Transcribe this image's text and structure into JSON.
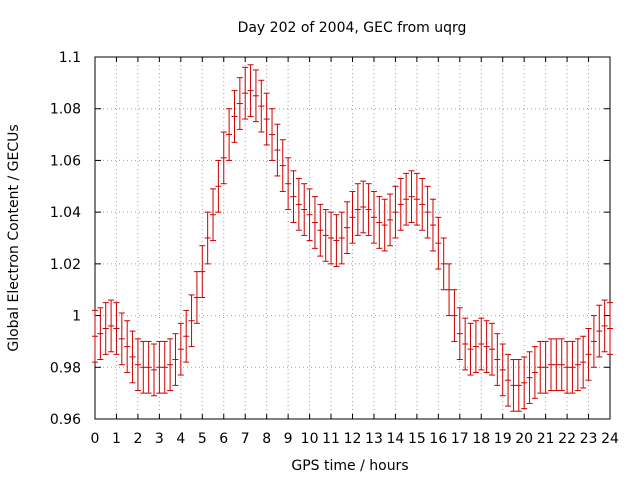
{
  "chart_data": {
    "type": "line",
    "title": "Day 202 of 2004, GEC from uqrg",
    "xlabel": "GPS time / hours",
    "ylabel": "Global Electron Content / GECUs",
    "xlim": [
      0,
      24
    ],
    "ylim": [
      0.96,
      1.1
    ],
    "xticks": [
      0,
      1,
      2,
      3,
      4,
      5,
      6,
      7,
      8,
      9,
      10,
      11,
      12,
      13,
      14,
      15,
      16,
      17,
      18,
      19,
      20,
      21,
      22,
      23,
      24
    ],
    "yticks": [
      0.96,
      0.98,
      1,
      1.02,
      1.04,
      1.06,
      1.08,
      1.1
    ],
    "ytick_labels": [
      "0.96",
      "0.98",
      "1",
      "1.02",
      "1.04",
      "1.06",
      "1.08",
      "1.1"
    ],
    "grid": true,
    "error_bar_half_width": 0.01,
    "series": [
      {
        "name": "GEC",
        "color": "#cc0000",
        "x": [
          0,
          0.25,
          0.5,
          0.75,
          1,
          1.25,
          1.5,
          1.75,
          2,
          2.25,
          2.5,
          2.75,
          3,
          3.25,
          3.5,
          3.75,
          4,
          4.25,
          4.5,
          4.75,
          5,
          5.25,
          5.5,
          5.75,
          6,
          6.25,
          6.5,
          6.75,
          7,
          7.25,
          7.5,
          7.75,
          8,
          8.25,
          8.5,
          8.75,
          9,
          9.25,
          9.5,
          9.75,
          10,
          10.25,
          10.5,
          10.75,
          11,
          11.25,
          11.5,
          11.75,
          12,
          12.25,
          12.5,
          12.75,
          13,
          13.25,
          13.5,
          13.75,
          14,
          14.25,
          14.5,
          14.75,
          15,
          15.25,
          15.5,
          15.75,
          16,
          16.25,
          16.5,
          16.75,
          17,
          17.25,
          17.5,
          17.75,
          18,
          18.25,
          18.5,
          18.75,
          19,
          19.25,
          19.5,
          19.75,
          20,
          20.25,
          20.5,
          20.75,
          21,
          21.25,
          21.5,
          21.75,
          22,
          22.25,
          22.5,
          22.75,
          23,
          23.25,
          23.5,
          23.75,
          24
        ],
        "y": [
          0.992,
          0.993,
          0.995,
          0.996,
          0.995,
          0.991,
          0.988,
          0.984,
          0.981,
          0.98,
          0.98,
          0.979,
          0.98,
          0.98,
          0.981,
          0.983,
          0.987,
          0.992,
          0.998,
          1.007,
          1.017,
          1.03,
          1.039,
          1.05,
          1.061,
          1.07,
          1.077,
          1.082,
          1.086,
          1.087,
          1.085,
          1.081,
          1.076,
          1.07,
          1.064,
          1.058,
          1.051,
          1.046,
          1.043,
          1.041,
          1.039,
          1.036,
          1.033,
          1.031,
          1.03,
          1.029,
          1.03,
          1.034,
          1.038,
          1.041,
          1.042,
          1.041,
          1.038,
          1.036,
          1.035,
          1.037,
          1.04,
          1.043,
          1.045,
          1.046,
          1.045,
          1.043,
          1.04,
          1.035,
          1.028,
          1.02,
          1.01,
          1.0,
          0.993,
          0.989,
          0.987,
          0.988,
          0.989,
          0.988,
          0.987,
          0.983,
          0.979,
          0.975,
          0.973,
          0.973,
          0.974,
          0.976,
          0.978,
          0.98,
          0.98,
          0.981,
          0.981,
          0.981,
          0.98,
          0.98,
          0.981,
          0.982,
          0.985,
          0.99,
          0.994,
          0.996,
          0.995
        ]
      }
    ]
  }
}
